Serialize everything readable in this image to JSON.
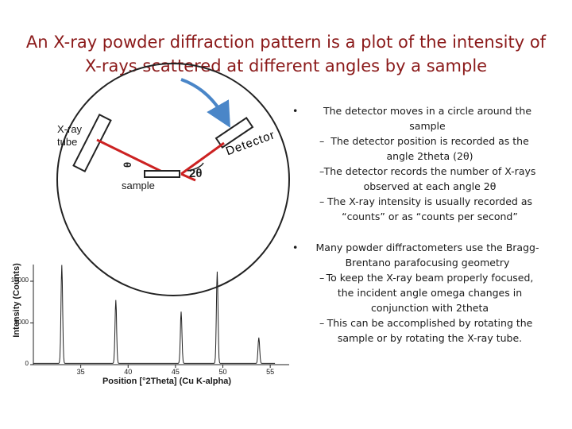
{
  "title": "An X-ray powder diffraction pattern is a plot of the intensity of X-rays scattered at different angles by a sample",
  "diagram": {
    "tube_label_line1": "X-ray",
    "tube_label_line2": "tube",
    "detector_label": "Detector",
    "sample_label": "sample",
    "two_theta_label": "2θ",
    "theta_label": "θ"
  },
  "chart_data": {
    "type": "line",
    "xlabel": "Position [°2Theta] (Cu K-alpha)",
    "ylabel": "Intensity (Counts)",
    "xlim": [
      30,
      57
    ],
    "ylim": [
      0,
      12000
    ],
    "xticks": [
      35,
      40,
      45,
      50,
      55
    ],
    "yticks": [
      0,
      5000,
      10000
    ],
    "ytick_labels": [
      "0",
      "5000",
      "10000"
    ],
    "peaks": [
      {
        "x": 33.0,
        "y": 11800
      },
      {
        "x": 38.7,
        "y": 7600
      },
      {
        "x": 45.6,
        "y": 6200
      },
      {
        "x": 49.4,
        "y": 11000
      },
      {
        "x": 53.8,
        "y": 3100
      }
    ],
    "baseline": 150
  },
  "bullets": [
    {
      "text": "The detector moves in a circle around the sample",
      "subs": [
        "The detector position is recorded as the angle 2theta (2θ)",
        "The detector records the number of X-rays observed at each angle 2θ",
        "The X-ray intensity is usually recorded as “counts” or as “counts per second”"
      ]
    },
    {
      "text": "Many powder diffractometers use the Bragg-Brentano parafocusing geometry",
      "subs": [
        "To keep the X-ray beam properly focused, the incident angle omega changes in conjunction with 2theta",
        "This can be accomplished by rotating the sample or by rotating the X-ray tube."
      ]
    }
  ],
  "colors": {
    "title": "#8b1a1a",
    "beam": "#cc2222",
    "arrow": "#4a86c8"
  }
}
